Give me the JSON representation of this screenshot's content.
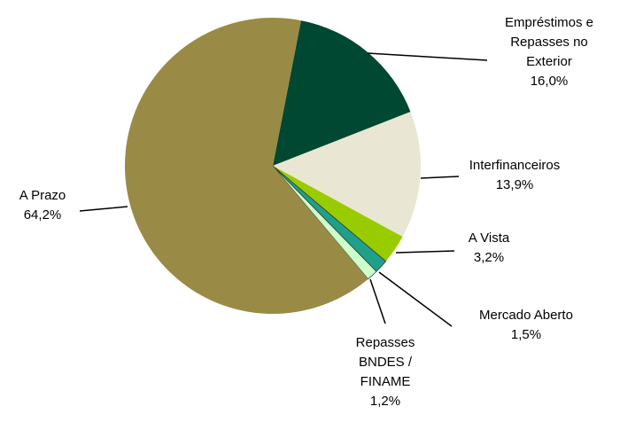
{
  "chart_data": {
    "type": "pie",
    "categories": [
      "Empréstimos e Repasses no Exterior",
      "Interfinanceiros",
      "A Vista",
      "Mercado Aberto",
      "Repasses BNDES / FINAME",
      "A Prazo"
    ],
    "values": [
      16.0,
      13.9,
      3.2,
      1.5,
      1.2,
      64.2
    ],
    "value_labels": [
      "16,0%",
      "13,9%",
      "3,2%",
      "1,5%",
      "1,2%",
      "64,2%"
    ],
    "colors": [
      "#004832",
      "#e9e7d3",
      "#99cc00",
      "#1fa08a",
      "#ccffcc",
      "#998b45"
    ]
  }
}
